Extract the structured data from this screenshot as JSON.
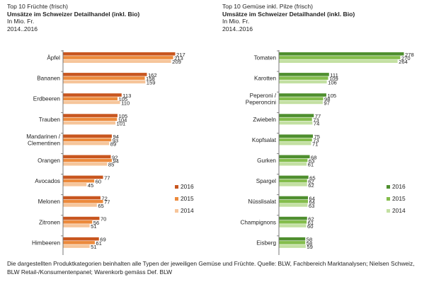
{
  "chart_data": [
    {
      "type": "bar",
      "orientation": "horizontal",
      "title": "Top 10 Früchte (frisch)",
      "subtitle": "Umsätze im Schweizer Detailhandel (inkl. Bio)",
      "unit_line": "In Mio. Fr.",
      "period": "2014..2016",
      "categories": [
        "Äpfel",
        "Bananen",
        "Erdbeeren",
        "Trauben",
        "Mandarinen / Clementinen",
        "Orangen",
        "Avocados",
        "Melonen",
        "Zitronen",
        "Himbeeren"
      ],
      "series": [
        {
          "name": "2016",
          "color": "#c8561f",
          "values": [
            217,
            162,
            113,
            105,
            94,
            92,
            77,
            72,
            70,
            69
          ]
        },
        {
          "name": "2015",
          "color": "#ec8a3c",
          "values": [
            213,
            158,
            105,
            104,
            93,
            94,
            60,
            77,
            56,
            61
          ]
        },
        {
          "name": "2014",
          "color": "#f6c59a",
          "values": [
            209,
            159,
            110,
            101,
            89,
            85,
            45,
            65,
            51,
            51
          ]
        }
      ],
      "legend": [
        "2016",
        "2015",
        "2014"
      ],
      "legend_position": "right"
    },
    {
      "type": "bar",
      "orientation": "horizontal",
      "title": "Top 10 Gemüse inkl. Pilze (frisch)",
      "subtitle": "Umsätze im Schweizer Detailhandel (inkl. Bio)",
      "unit_line": "In Mio. Fr.",
      "period": "2014..2016",
      "categories": [
        "Tomaten",
        "Karotten",
        "Peperoni / Peperoncini",
        "Zwiebeln",
        "Kopfsalat",
        "Gurken",
        "Spargel",
        "Nüsslisalat",
        "Champignons",
        "Eisberg"
      ],
      "series": [
        {
          "name": "2016",
          "color": "#4f8f2f",
          "values": [
            278,
            111,
            105,
            77,
            75,
            68,
            65,
            64,
            62,
            58
          ]
        },
        {
          "name": "2015",
          "color": "#84bd4c",
          "values": [
            270,
            109,
            98,
            73,
            73,
            63,
            62,
            64,
            61,
            58
          ]
        },
        {
          "name": "2014",
          "color": "#c3e0a2",
          "values": [
            264,
            106,
            97,
            74,
            71,
            61,
            62,
            63,
            60,
            59
          ]
        }
      ],
      "legend": [
        "2016",
        "2015",
        "2014"
      ],
      "legend_position": "right"
    }
  ],
  "footnote": "Die dargestellten Produktkategorien beinhalten alle Typen der jeweiligen Gemüse und Früchte. Quelle: BLW, Fachbereich Marktanalysen; Nielsen Schweiz, BLW Retail-/Konsumentenpanel; Warenkorb gemäss Def. BLW"
}
